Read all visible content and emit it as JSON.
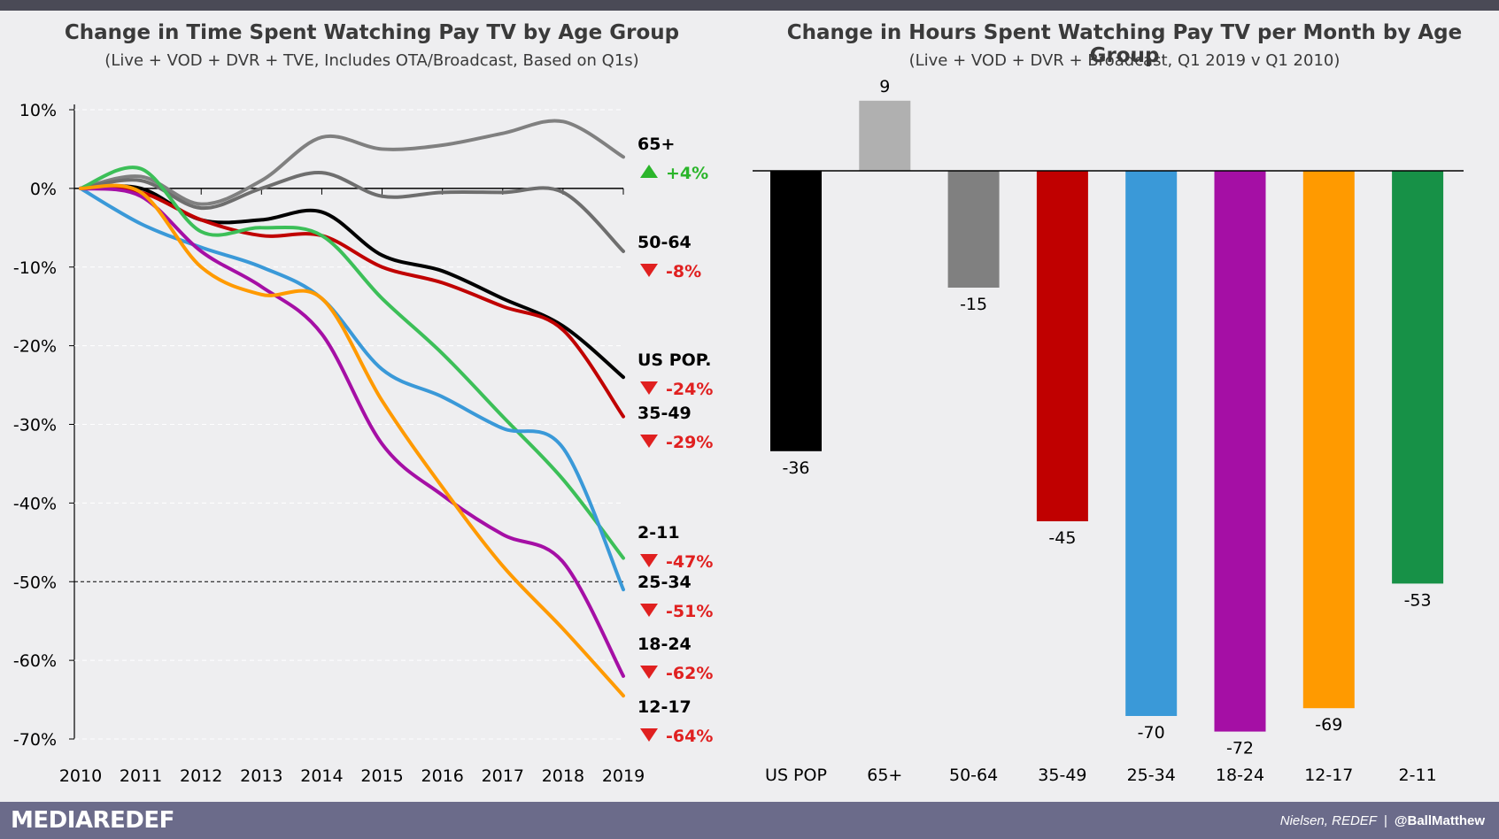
{
  "footer": {
    "brand": "MEDIAREDEF",
    "source": "Nielsen,  REDEF",
    "separator": "|",
    "handle": "@BallMatthew"
  },
  "colors": {
    "us_pop": "#000000",
    "age_65": "#808080",
    "age_50_64": "#6e6e6e",
    "age_35_49": "#c00000",
    "age_25_34": "#3a99d8",
    "age_18_24": "#a50fa5",
    "age_12_17": "#ff9a00",
    "age_2_11": "#3cbf58",
    "bar_65": "#b0b0b0",
    "bar_50_64": "#808080",
    "bar_2_11": "#179147",
    "up": "#2bb52b",
    "down": "#e02020"
  },
  "chart_data": [
    {
      "type": "line",
      "title": "Change in Time Spent Watching Pay TV by Age Group",
      "subtitle": "(Live + VOD + DVR + TVE, Includes OTA/Broadcast, Based on Q1s)",
      "x": [
        "2010",
        "2011",
        "2012",
        "2013",
        "2014",
        "2015",
        "2016",
        "2017",
        "2018",
        "2019"
      ],
      "ylim": [
        -70,
        10
      ],
      "yticks": [
        10,
        0,
        -10,
        -20,
        -30,
        -40,
        -50,
        -60,
        -70
      ],
      "ytick_labels": [
        "10%",
        "0%",
        "-10%",
        "-20%",
        "-30%",
        "-40%",
        "-50%",
        "-60%",
        "-70%"
      ],
      "reference_line": -50,
      "series": [
        {
          "name": "65+",
          "change": "+4%",
          "direction": "up",
          "color_key": "age_65",
          "values": [
            0,
            1.5,
            -2,
            1,
            6.5,
            5,
            5.5,
            7,
            8.5,
            4
          ]
        },
        {
          "name": "50-64",
          "change": "-8%",
          "direction": "down",
          "color_key": "age_50_64",
          "values": [
            0,
            1,
            -2.5,
            0,
            2,
            -1,
            -0.5,
            -0.5,
            -0.5,
            -8
          ]
        },
        {
          "name": "US POP.",
          "change": "-24%",
          "direction": "down",
          "color_key": "us_pop",
          "values": [
            0,
            0,
            -4,
            -4,
            -3,
            -8.5,
            -10.5,
            -14,
            -17.5,
            -24
          ]
        },
        {
          "name": "35-49",
          "change": "-29%",
          "direction": "down",
          "color_key": "age_35_49",
          "values": [
            0,
            -0.5,
            -4,
            -6,
            -6,
            -10,
            -12,
            -15,
            -18,
            -29
          ]
        },
        {
          "name": "2-11",
          "change": "-47%",
          "direction": "down",
          "color_key": "age_2_11",
          "values": [
            0,
            2.5,
            -5.5,
            -5,
            -6,
            -14,
            -21,
            -29,
            -37,
            -47
          ]
        },
        {
          "name": "25-34",
          "change": "-51%",
          "direction": "down",
          "color_key": "age_25_34",
          "values": [
            0,
            -4.5,
            -7.5,
            -10,
            -14,
            -23,
            -26.5,
            -30.5,
            -33,
            -51
          ]
        },
        {
          "name": "18-24",
          "change": "-62%",
          "direction": "down",
          "color_key": "age_18_24",
          "values": [
            0,
            -1,
            -8,
            -12.5,
            -18.5,
            -32.5,
            -39,
            -44,
            -47.5,
            -62
          ]
        },
        {
          "name": "12-17",
          "change": "-64%",
          "direction": "down",
          "color_key": "age_12_17",
          "values": [
            0,
            -0.5,
            -10,
            -13.5,
            -14,
            -27,
            -38,
            -48,
            -56,
            -64.5
          ]
        }
      ]
    },
    {
      "type": "bar",
      "title": "Change in Hours Spent Watching Pay TV per Month by Age Group",
      "subtitle": "(Live + VOD + DVR + Broadcast, Q1 2019 v Q1 2010)",
      "categories": [
        "US POP",
        "65+",
        "50-64",
        "35-49",
        "25-34",
        "18-24",
        "12-17",
        "2-11"
      ],
      "values": [
        -36,
        9,
        -15,
        -45,
        -70,
        -72,
        -69,
        -53
      ],
      "bar_color_keys": [
        "us_pop",
        "bar_65",
        "bar_50_64",
        "age_35_49",
        "age_25_34",
        "age_18_24",
        "age_12_17",
        "bar_2_11"
      ]
    }
  ]
}
